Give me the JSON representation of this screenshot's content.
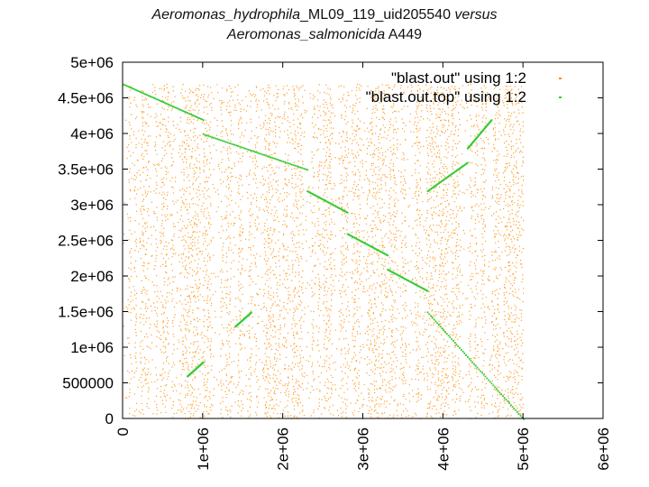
{
  "title": {
    "line1_italic_a": "Aeromonas_hydrophila",
    "line1_plain": "_ML09_119_uid205540",
    "line1_italic_b": " versus",
    "line2_italic": "Aeromonas_salmonicida",
    "line2_plain": " A449"
  },
  "chart_data": {
    "type": "scatter",
    "title": "Aeromonas_hydrophila_ML09_119_uid205540 versus Aeromonas_salmonicida A449",
    "xlim": [
      0,
      6000000
    ],
    "ylim": [
      0,
      5000000
    ],
    "x_ticks": [
      "0",
      "1e+06",
      "2e+06",
      "3e+06",
      "4e+06",
      "5e+06",
      "6e+06"
    ],
    "y_ticks": [
      "0",
      "500000",
      "1e+06",
      "1.5e+06",
      "2e+06",
      "2.5e+06",
      "3e+06",
      "3.5e+06",
      "4e+06",
      "4.5e+06",
      "5e+06"
    ],
    "legend_position": "top-right",
    "grid": false,
    "series": [
      {
        "name": "\"blast.out\" using 1:2",
        "color": "#ff8c00",
        "style": "dots",
        "x_range": [
          0,
          5000000
        ],
        "y_range": [
          0,
          4700000
        ]
      },
      {
        "name": "\"blast.out.top\" using 1:2",
        "color": "#33cc33",
        "style": "dots",
        "segments": [
          {
            "x": [
              0,
              1000000
            ],
            "y": [
              4700000,
              4200000
            ]
          },
          {
            "x": [
              1000000,
              2300000
            ],
            "y": [
              4000000,
              3500000
            ]
          },
          {
            "x": [
              2300000,
              2800000
            ],
            "y": [
              3200000,
              2900000
            ]
          },
          {
            "x": [
              2800000,
              3300000
            ],
            "y": [
              2600000,
              2300000
            ]
          },
          {
            "x": [
              3300000,
              3800000
            ],
            "y": [
              2100000,
              1800000
            ]
          },
          {
            "x": [
              3800000,
              5000000
            ],
            "y": [
              1500000,
              0
            ]
          },
          {
            "x": [
              1400000,
              1600000
            ],
            "y": [
              1300000,
              1500000
            ]
          },
          {
            "x": [
              800000,
              1000000
            ],
            "y": [
              600000,
              800000
            ]
          },
          {
            "x": [
              3800000,
              4300000
            ],
            "y": [
              3200000,
              3600000
            ]
          },
          {
            "x": [
              4300000,
              4600000
            ],
            "y": [
              3800000,
              4200000
            ]
          }
        ]
      }
    ]
  }
}
